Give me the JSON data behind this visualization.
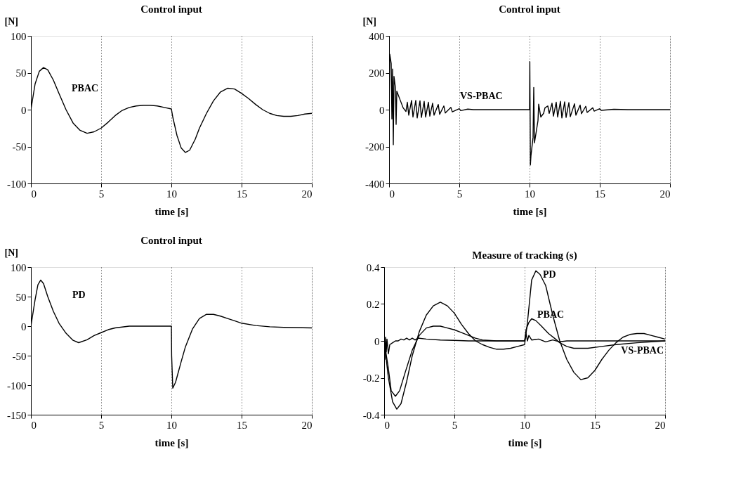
{
  "chart_data": [
    {
      "type": "line",
      "title": "Control input",
      "xlabel": "time [s]",
      "ylabel": "[N]",
      "xlim": [
        0,
        20
      ],
      "xticks": [
        0,
        5,
        10,
        15,
        20
      ],
      "ylim": [
        -100,
        100
      ],
      "yticks": [
        -100,
        -50,
        0,
        50,
        100
      ],
      "grid": "x",
      "line_style": "solid",
      "series": [
        {
          "name": "PBAC",
          "color": "#000000",
          "x": [
            0,
            0.3,
            0.6,
            0.9,
            1.2,
            1.6,
            2,
            2.5,
            3,
            3.5,
            4,
            4.5,
            5,
            5.5,
            6,
            6.5,
            7,
            7.5,
            8,
            8.5,
            9,
            9.5,
            10,
            10.1,
            10.4,
            10.7,
            11,
            11.3,
            11.7,
            12,
            12.5,
            13,
            13.5,
            14,
            14.5,
            15,
            15.5,
            16,
            16.5,
            17,
            17.5,
            18,
            18.5,
            19,
            19.5,
            20
          ],
          "values": [
            0,
            35,
            52,
            57,
            54,
            40,
            22,
            0,
            -18,
            -28,
            -32,
            -30,
            -25,
            -17,
            -8,
            -1,
            3,
            5,
            6,
            6,
            5,
            3,
            1,
            -10,
            -35,
            -52,
            -58,
            -55,
            -40,
            -25,
            -5,
            12,
            24,
            29,
            28,
            22,
            15,
            7,
            0,
            -5,
            -8,
            -9,
            -9,
            -8,
            -6,
            -5
          ]
        }
      ]
    },
    {
      "type": "line",
      "title": "Control input",
      "xlabel": "time [s]",
      "ylabel": "[N]",
      "xlim": [
        0,
        20
      ],
      "xticks": [
        0,
        5,
        10,
        15,
        20
      ],
      "ylim": [
        -400,
        400
      ],
      "yticks": [
        -400,
        -200,
        0,
        200,
        400
      ],
      "grid": "x",
      "line_style": "solid",
      "series": [
        {
          "name": "VS-PBAC",
          "color": "#000000",
          "x": [
            0,
            0.05,
            0.15,
            0.2,
            0.25,
            0.3,
            0.35,
            0.45,
            0.5,
            0.55,
            0.8,
            1,
            1.2,
            1.3,
            1.4,
            1.6,
            1.7,
            1.9,
            2,
            2.2,
            2.3,
            2.5,
            2.6,
            2.8,
            2.9,
            3.1,
            3.2,
            3.5,
            3.6,
            3.9,
            4,
            4.4,
            4.5,
            5,
            5.1,
            5.6,
            6,
            10,
            10.02,
            10.06,
            10.1,
            10.25,
            10.3,
            10.35,
            10.6,
            10.65,
            10.8,
            11,
            11.1,
            11.3,
            11.4,
            11.6,
            11.7,
            11.9,
            12,
            12.2,
            12.3,
            12.5,
            12.6,
            12.8,
            12.9,
            13.2,
            13.3,
            13.6,
            13.7,
            14,
            14.1,
            14.5,
            14.6,
            15,
            15.1,
            16,
            17,
            20
          ],
          "values": [
            0,
            300,
            250,
            -50,
            220,
            -190,
            180,
            120,
            -80,
            100,
            50,
            10,
            -10,
            40,
            -30,
            50,
            -40,
            50,
            -45,
            48,
            -42,
            45,
            -40,
            40,
            -35,
            35,
            -30,
            28,
            -25,
            20,
            -18,
            12,
            -12,
            5,
            -5,
            3,
            0,
            0,
            260,
            -300,
            -250,
            -150,
            120,
            -180,
            -60,
            30,
            -40,
            -20,
            10,
            20,
            -20,
            35,
            -35,
            40,
            -40,
            45,
            -45,
            42,
            -42,
            38,
            -38,
            32,
            -30,
            25,
            -22,
            18,
            -15,
            10,
            -8,
            5,
            -4,
            2,
            0,
            0
          ]
        }
      ]
    },
    {
      "type": "line",
      "title": "Control input",
      "xlabel": "time [s]",
      "ylabel": "[N]",
      "xlim": [
        0,
        20
      ],
      "xticks": [
        0,
        5,
        10,
        15,
        20
      ],
      "ylim": [
        -150,
        100
      ],
      "yticks": [
        -150,
        -100,
        -50,
        0,
        50,
        100
      ],
      "grid": "x",
      "line_style": "solid",
      "series": [
        {
          "name": "PD",
          "color": "#000000",
          "x": [
            0,
            0.3,
            0.5,
            0.7,
            0.9,
            1.2,
            1.6,
            2,
            2.5,
            3,
            3.4,
            4,
            4.5,
            5,
            5.5,
            6,
            7,
            8,
            10,
            10.02,
            10.1,
            10.3,
            10.7,
            11,
            11.5,
            12,
            12.5,
            13,
            13.5,
            14,
            14.5,
            15,
            16,
            17,
            18,
            20
          ],
          "values": [
            0,
            45,
            70,
            78,
            72,
            50,
            25,
            5,
            -12,
            -24,
            -28,
            -23,
            -16,
            -11,
            -6,
            -3,
            0,
            0,
            0,
            -50,
            -105,
            -95,
            -60,
            -35,
            -5,
            13,
            20,
            20,
            17,
            13,
            9,
            5,
            1,
            -1,
            -2,
            -3
          ]
        }
      ]
    },
    {
      "type": "line",
      "title": "Measure of tracking (s)",
      "xlabel": "time [s]",
      "xlim": [
        0,
        20
      ],
      "xticks": [
        0,
        5,
        10,
        15,
        20
      ],
      "ylim": [
        -0.4,
        0.4
      ],
      "yticks": [
        -0.4,
        -0.2,
        0,
        0.2,
        0.4
      ],
      "grid": "x",
      "line_style": "solid",
      "series": [
        {
          "name": "PD",
          "color": "#000000",
          "x": [
            0,
            0.3,
            0.6,
            0.9,
            1.2,
            1.6,
            2,
            2.5,
            3,
            3.5,
            4,
            4.5,
            5,
            5.5,
            6,
            6.5,
            7,
            7.5,
            8,
            8.5,
            9,
            9.5,
            10,
            10.2,
            10.5,
            10.8,
            11.1,
            11.5,
            12,
            12.5,
            13,
            13.5,
            14,
            14.5,
            15,
            15.5,
            16,
            16.5,
            17,
            17.5,
            18,
            18.5,
            19,
            19.5,
            20
          ],
          "values": [
            0,
            -0.2,
            -0.33,
            -0.37,
            -0.34,
            -0.22,
            -0.08,
            0.05,
            0.14,
            0.19,
            0.21,
            0.19,
            0.15,
            0.09,
            0.04,
            0,
            -0.02,
            -0.035,
            -0.045,
            -0.045,
            -0.04,
            -0.03,
            -0.02,
            0.1,
            0.33,
            0.38,
            0.36,
            0.3,
            0.14,
            0,
            -0.1,
            -0.17,
            -0.21,
            -0.2,
            -0.16,
            -0.1,
            -0.05,
            -0.01,
            0.02,
            0.035,
            0.04,
            0.04,
            0.03,
            0.02,
            0.01
          ]
        },
        {
          "name": "PBAC",
          "color": "#000000",
          "x": [
            0,
            0.3,
            0.5,
            0.8,
            1.1,
            1.5,
            2,
            2.5,
            3,
            3.5,
            4,
            4.5,
            5,
            5.5,
            6,
            6.5,
            7,
            8,
            10,
            10.1,
            10.3,
            10.5,
            10.8,
            11.2,
            11.7,
            12.2,
            12.5,
            13,
            13.5,
            14.5,
            15.5,
            16.5,
            18,
            20
          ],
          "values": [
            0,
            -0.15,
            -0.27,
            -0.3,
            -0.27,
            -0.17,
            -0.05,
            0.03,
            0.07,
            0.08,
            0.08,
            0.07,
            0.06,
            0.045,
            0.03,
            0.015,
            0.005,
            0,
            0,
            0.06,
            0.1,
            0.12,
            0.11,
            0.08,
            0.04,
            0.01,
            -0.01,
            -0.03,
            -0.04,
            -0.04,
            -0.03,
            -0.02,
            -0.01,
            0
          ]
        },
        {
          "name": "VS-PBAC",
          "color": "#000000",
          "x": [
            0,
            0.05,
            0.1,
            0.15,
            0.2,
            0.3,
            0.4,
            0.6,
            0.8,
            1,
            1.2,
            1.4,
            1.6,
            1.8,
            2,
            2.2,
            2.4,
            3,
            4,
            5,
            6,
            10,
            10.1,
            10.2,
            10.3,
            10.5,
            11,
            11.5,
            12,
            12.5,
            13,
            20
          ],
          "values": [
            0,
            -0.1,
            0.02,
            -0.06,
            0.01,
            -0.07,
            -0.02,
            -0.01,
            0,
            0,
            0.01,
            0.005,
            0.015,
            0.005,
            0.015,
            0.005,
            0.015,
            0.01,
            0.005,
            0.003,
            0,
            0,
            0.04,
            0,
            0.03,
            0.005,
            0.01,
            -0.005,
            0.005,
            -0.005,
            0,
            0
          ]
        }
      ]
    }
  ]
}
